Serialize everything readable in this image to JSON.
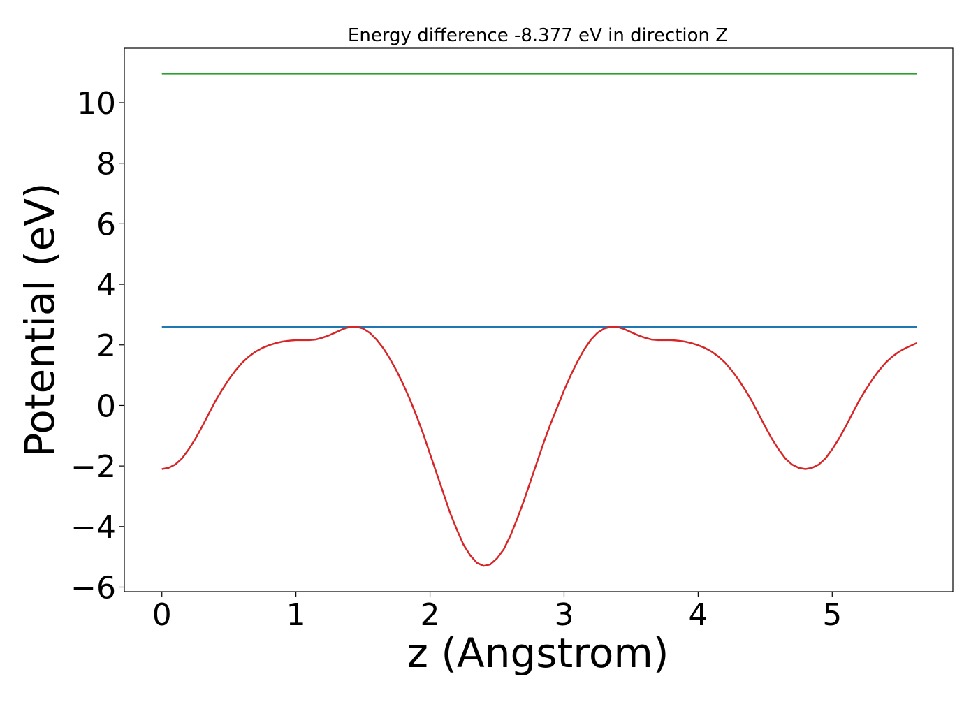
{
  "chart_data": {
    "type": "line",
    "title": "Energy difference -8.377 eV in direction Z",
    "xlabel": "z (Angstrom)",
    "ylabel": "Potential (eV)",
    "xlim": [
      -0.28,
      5.9
    ],
    "ylim": [
      -6.15,
      11.8
    ],
    "grid": false,
    "legend": "none",
    "x_ticks": [
      0,
      1,
      2,
      3,
      4,
      5
    ],
    "x_tick_labels": [
      "0",
      "1",
      "2",
      "3",
      "4",
      "5"
    ],
    "y_ticks": [
      -6,
      -4,
      -2,
      0,
      2,
      4,
      6,
      8,
      10
    ],
    "y_tick_labels": [
      "−6",
      "−4",
      "−2",
      "0",
      "2",
      "4",
      "6",
      "8",
      "10"
    ],
    "series": [
      {
        "color": "#2ca02c",
        "x": [
          0,
          5.63
        ],
        "y": [
          10.96,
          10.96
        ]
      },
      {
        "color": "#1f77b4",
        "x": [
          0,
          5.63
        ],
        "y": [
          2.6,
          2.6
        ]
      },
      {
        "color": "#d62728",
        "x": [
          0.0,
          0.05,
          0.1,
          0.15,
          0.2,
          0.25,
          0.3,
          0.35,
          0.4,
          0.45,
          0.5,
          0.55,
          0.6,
          0.65,
          0.7,
          0.75,
          0.8,
          0.85,
          0.9,
          0.95,
          1.0,
          1.05,
          1.1,
          1.15,
          1.2,
          1.25,
          1.3,
          1.35,
          1.4,
          1.45,
          1.5,
          1.55,
          1.6,
          1.65,
          1.7,
          1.75,
          1.8,
          1.85,
          1.9,
          1.95,
          2.0,
          2.05,
          2.1,
          2.15,
          2.2,
          2.25,
          2.3,
          2.35,
          2.4,
          2.45,
          2.5,
          2.55,
          2.6,
          2.65,
          2.7,
          2.75,
          2.8,
          2.85,
          2.9,
          2.95,
          3.0,
          3.05,
          3.1,
          3.15,
          3.2,
          3.25,
          3.3,
          3.35,
          3.4,
          3.45,
          3.5,
          3.55,
          3.6,
          3.65,
          3.7,
          3.75,
          3.8,
          3.85,
          3.9,
          3.95,
          4.0,
          4.05,
          4.1,
          4.15,
          4.2,
          4.25,
          4.3,
          4.35,
          4.4,
          4.45,
          4.5,
          4.55,
          4.6,
          4.65,
          4.7,
          4.75,
          4.8,
          4.85,
          4.9,
          4.95,
          5.0,
          5.05,
          5.1,
          5.15,
          5.2,
          5.25,
          5.3,
          5.35,
          5.4,
          5.45,
          5.5,
          5.55,
          5.63
        ],
        "y": [
          -2.1,
          -2.06,
          -1.95,
          -1.75,
          -1.45,
          -1.1,
          -0.7,
          -0.27,
          0.15,
          0.52,
          0.86,
          1.16,
          1.42,
          1.62,
          1.78,
          1.9,
          1.99,
          2.06,
          2.11,
          2.14,
          2.16,
          2.16,
          2.16,
          2.18,
          2.24,
          2.32,
          2.42,
          2.52,
          2.59,
          2.6,
          2.54,
          2.4,
          2.18,
          1.9,
          1.55,
          1.15,
          0.7,
          0.2,
          -0.35,
          -0.95,
          -1.6,
          -2.25,
          -2.9,
          -3.55,
          -4.1,
          -4.6,
          -4.95,
          -5.2,
          -5.3,
          -5.25,
          -5.05,
          -4.75,
          -4.3,
          -3.75,
          -3.15,
          -2.5,
          -1.85,
          -1.2,
          -0.6,
          -0.05,
          0.5,
          1.0,
          1.45,
          1.85,
          2.17,
          2.4,
          2.54,
          2.6,
          2.59,
          2.52,
          2.42,
          2.32,
          2.24,
          2.18,
          2.16,
          2.16,
          2.16,
          2.14,
          2.11,
          2.06,
          1.99,
          1.9,
          1.78,
          1.62,
          1.42,
          1.16,
          0.86,
          0.52,
          0.15,
          -0.27,
          -0.7,
          -1.1,
          -1.45,
          -1.75,
          -1.95,
          -2.06,
          -2.1,
          -2.06,
          -1.95,
          -1.75,
          -1.45,
          -1.1,
          -0.7,
          -0.27,
          0.15,
          0.52,
          0.86,
          1.16,
          1.42,
          1.62,
          1.78,
          1.9,
          2.06
        ]
      }
    ]
  }
}
